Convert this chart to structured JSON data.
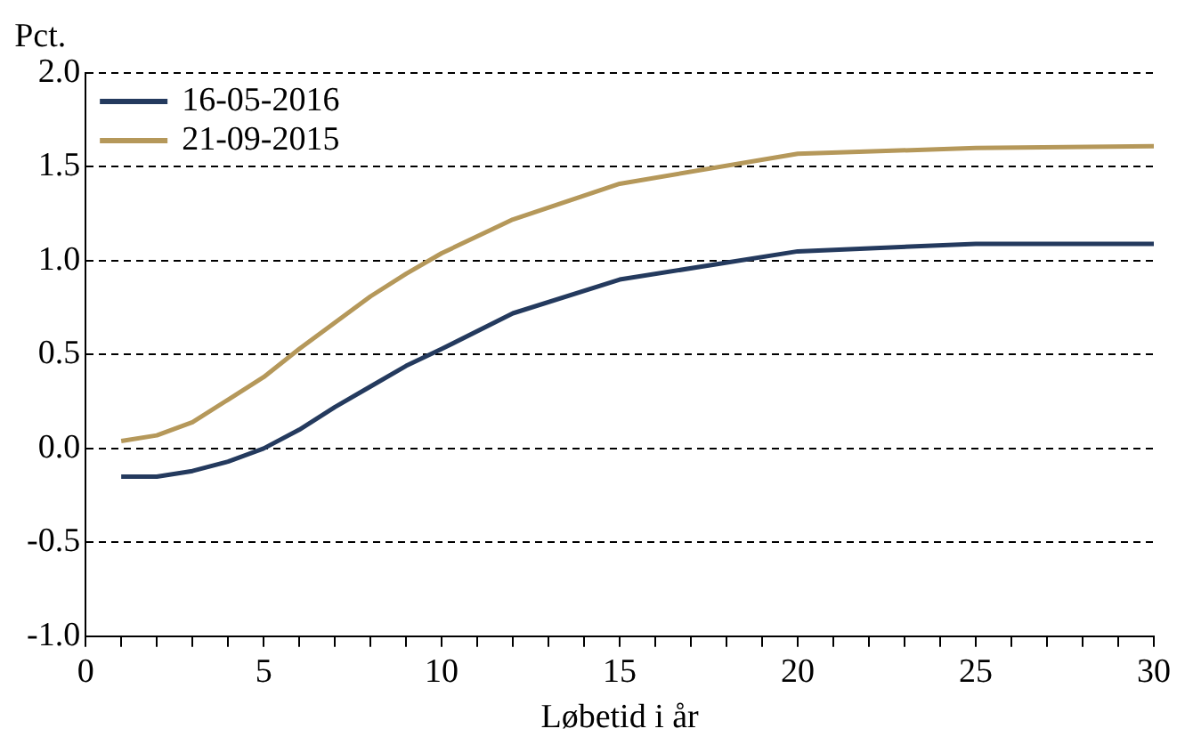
{
  "chart_data": {
    "type": "line",
    "ylabel": "Pct.",
    "xlabel": "Løbetid i år",
    "legend": "top left",
    "grid": "y",
    "line_style": "solid",
    "marker": "none",
    "x": [
      1,
      2,
      3,
      4,
      5,
      6,
      7,
      8,
      9,
      10,
      12,
      15,
      20,
      25,
      30
    ],
    "series": [
      {
        "name": "16-05-2016",
        "color": "#243a5e",
        "values": [
          -0.15,
          -0.15,
          -0.12,
          -0.07,
          0.0,
          0.1,
          0.22,
          0.33,
          0.44,
          0.53,
          0.72,
          0.9,
          1.05,
          1.09,
          1.09
        ]
      },
      {
        "name": "21-09-2015",
        "color": "#b5985a",
        "values": [
          0.04,
          0.07,
          0.14,
          0.26,
          0.38,
          0.53,
          0.67,
          0.81,
          0.93,
          1.04,
          1.22,
          1.41,
          1.57,
          1.6,
          1.61
        ]
      }
    ],
    "xlim": [
      0,
      30
    ],
    "xticks": [
      0,
      {
        "value": 1,
        "label": null
      },
      {
        "value": 2,
        "label": null
      },
      {
        "value": 3,
        "label": null
      },
      {
        "value": 4,
        "label": null
      },
      5,
      {
        "value": 6,
        "label": null
      },
      {
        "value": 7,
        "label": null
      },
      {
        "value": 8,
        "label": null
      },
      {
        "value": 9,
        "label": null
      },
      10,
      {
        "value": 11,
        "label": null
      },
      {
        "value": 12,
        "label": null
      },
      {
        "value": 13,
        "label": null
      },
      {
        "value": 14,
        "label": null
      },
      15,
      {
        "value": 16,
        "label": null
      },
      {
        "value": 17,
        "label": null
      },
      {
        "value": 18,
        "label": null
      },
      {
        "value": 19,
        "label": null
      },
      20,
      {
        "value": 21,
        "label": null
      },
      {
        "value": 22,
        "label": null
      },
      {
        "value": 23,
        "label": null
      },
      {
        "value": 24,
        "label": null
      },
      25,
      {
        "value": 26,
        "label": null
      },
      {
        "value": 27,
        "label": null
      },
      {
        "value": 28,
        "label": null
      },
      {
        "value": 29,
        "label": null
      },
      30
    ],
    "ylim": [
      -1,
      2
    ],
    "yticks": [
      {
        "value": -1,
        "label": "-1.0"
      },
      {
        "value": -0.5,
        "label": "-0.5"
      },
      {
        "value": 0,
        "label": "0.0"
      },
      {
        "value": 0.5,
        "label": "0.5"
      },
      {
        "value": 1,
        "label": "1.0"
      },
      {
        "value": 1.5,
        "label": "1.5"
      },
      {
        "value": 2,
        "label": "2.0"
      }
    ]
  }
}
